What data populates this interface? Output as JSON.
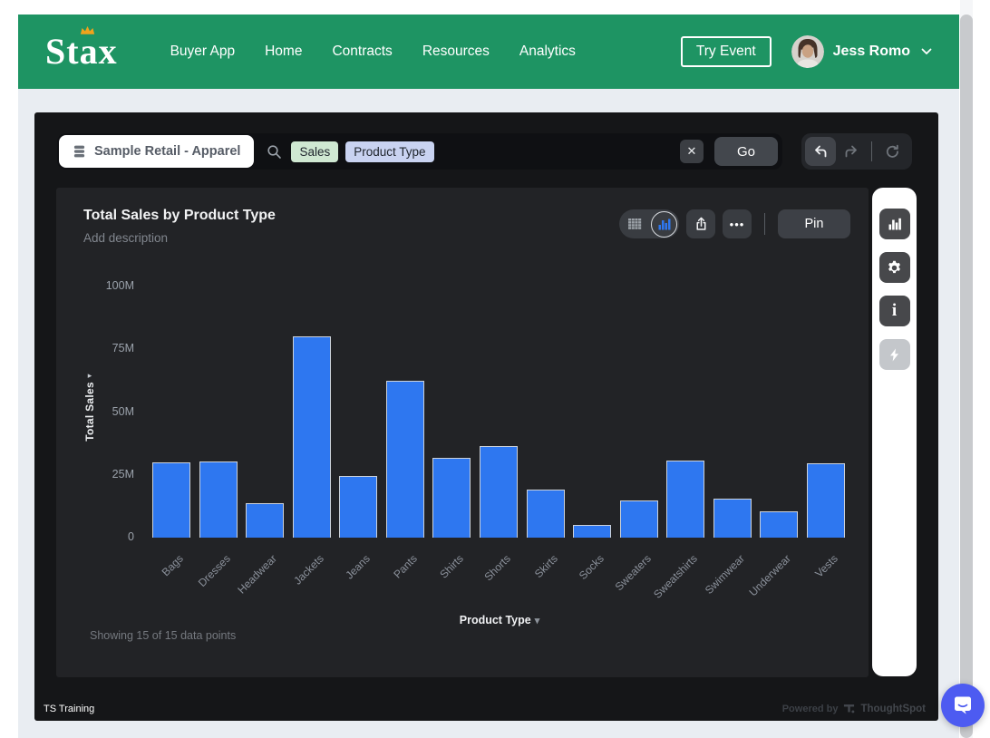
{
  "header": {
    "logo_text": "Stäx",
    "nav": [
      "Buyer App",
      "Home",
      "Contracts",
      "Resources",
      "Analytics"
    ],
    "try_event_label": "Try Event",
    "user_name": "Jess Romo"
  },
  "search_bar": {
    "data_source": "Sample Retail - Apparel",
    "tokens": [
      {
        "label": "Sales",
        "type": "measure"
      },
      {
        "label": "Product Type",
        "type": "attribute"
      }
    ],
    "go_label": "Go"
  },
  "answer": {
    "title": "Total Sales by Product Type",
    "description_placeholder": "Add description",
    "pin_label": "Pin",
    "showing_text": "Showing 15 of 15 data points"
  },
  "chart_data": {
    "type": "bar",
    "title": "Total Sales by Product Type",
    "xlabel": "Product Type",
    "ylabel": "Total Sales",
    "categories": [
      "Bags",
      "Dresses",
      "Headwear",
      "Jackets",
      "Jeans",
      "Pants",
      "Shirts",
      "Shorts",
      "Skirts",
      "Socks",
      "Sweaters",
      "Sweatshirts",
      "Swimwear",
      "Underwear",
      "Vests"
    ],
    "values_millions": [
      30.0,
      30.4,
      13.7,
      80.3,
      24.4,
      62.3,
      31.8,
      36.6,
      19.2,
      4.9,
      14.8,
      30.6,
      15.5,
      10.4,
      29.7
    ],
    "ylim_millions": [
      0,
      100
    ],
    "ytick_labels": [
      "0",
      "25M",
      "50M",
      "75M",
      "100M"
    ],
    "grid": "off",
    "legend": "off",
    "bar_color": "#2e77f0"
  },
  "footer": {
    "left_text": "TS Training",
    "powered_by": "Powered by",
    "brand": "ThoughtSpot"
  },
  "icons": {
    "close": "✕",
    "more": "•••",
    "caret_down": "▾",
    "axis_arrow": "▸"
  },
  "colors": {
    "header_green": "#1e9463",
    "embed_dark": "#151618",
    "card_dark": "#222326",
    "bar_blue": "#2e77f0",
    "token_measure_bg": "#cfe8d2",
    "token_attribute_bg": "#c9d3f1",
    "chat_bubble_blue": "#4d5bf1",
    "crown_gold": "#f0a31c"
  }
}
